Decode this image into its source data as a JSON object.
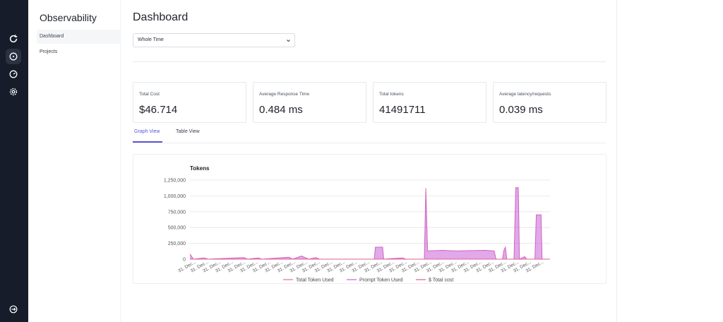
{
  "rail": {
    "icons": [
      "refresh-icon",
      "crosshair-icon",
      "gauge-icon",
      "settings-icon"
    ],
    "bottom_icon": "logout-icon"
  },
  "sidebar": {
    "brand": "Observability",
    "items": [
      {
        "label": "Dashboard",
        "active": true
      },
      {
        "label": "Projects",
        "active": false
      }
    ]
  },
  "main": {
    "title": "Dashboard",
    "range_select": {
      "value": "Whole Time"
    },
    "cards": [
      {
        "label": "Total Cost",
        "value": "$46.714"
      },
      {
        "label": "Average Response Time",
        "value": "0.484 ms"
      },
      {
        "label": "Total tokens",
        "value": "41491711"
      },
      {
        "label": "Average latency/requests",
        "value": "0.039 ms"
      }
    ],
    "tabs": [
      {
        "label": "Graph View",
        "active": true
      },
      {
        "label": "Table View",
        "active": false
      }
    ]
  },
  "colors": {
    "accent": "#5b55d6",
    "rail_bg": "#171c2b",
    "total_token": "#e0709b",
    "prompt_token": "#c860d8",
    "total_cost": "#e05f96"
  },
  "chart_data": {
    "type": "area",
    "title": "Tokens",
    "ylabel": "",
    "xlabel": "",
    "ylim": [
      0,
      1250000
    ],
    "yticks": [
      0,
      250000,
      500000,
      750000,
      1000000,
      1250000
    ],
    "ytick_labels": [
      "0",
      "250,000",
      "500,000",
      "750,000",
      "1,000,000",
      "1,250,000"
    ],
    "xtick_label": "31. Dec...",
    "xtick_count": 29,
    "legend": [
      "Total Token Used",
      "Prompt Token Used",
      "$ Total cost"
    ],
    "series": [
      {
        "name": "Total Token Used",
        "color": "#e0709b"
      },
      {
        "name": "Prompt Token Used",
        "color": "#c860d8"
      },
      {
        "name": "$ Total cost",
        "color": "#e05f96"
      }
    ],
    "points": [
      {
        "x": 0.0,
        "y": 80000
      },
      {
        "x": 0.01,
        "y": 0
      },
      {
        "x": 0.04,
        "y": 20000
      },
      {
        "x": 0.05,
        "y": 0
      },
      {
        "x": 0.15,
        "y": 25000
      },
      {
        "x": 0.16,
        "y": 0
      },
      {
        "x": 0.19,
        "y": 20000
      },
      {
        "x": 0.2,
        "y": 0
      },
      {
        "x": 0.275,
        "y": 30000
      },
      {
        "x": 0.285,
        "y": 0
      },
      {
        "x": 0.31,
        "y": 50000
      },
      {
        "x": 0.32,
        "y": 25000
      },
      {
        "x": 0.33,
        "y": 0
      },
      {
        "x": 0.35,
        "y": 25000
      },
      {
        "x": 0.36,
        "y": 0
      },
      {
        "x": 0.512,
        "y": 0
      },
      {
        "x": 0.515,
        "y": 190000
      },
      {
        "x": 0.535,
        "y": 190000
      },
      {
        "x": 0.538,
        "y": 0
      },
      {
        "x": 0.59,
        "y": 20000
      },
      {
        "x": 0.6,
        "y": 0
      },
      {
        "x": 0.651,
        "y": 0
      },
      {
        "x": 0.655,
        "y": 1120000
      },
      {
        "x": 0.66,
        "y": 130000
      },
      {
        "x": 0.7,
        "y": 140000
      },
      {
        "x": 0.74,
        "y": 130000
      },
      {
        "x": 0.78,
        "y": 135000
      },
      {
        "x": 0.82,
        "y": 140000
      },
      {
        "x": 0.845,
        "y": 130000
      },
      {
        "x": 0.85,
        "y": 0
      },
      {
        "x": 0.868,
        "y": 0
      },
      {
        "x": 0.872,
        "y": 140000
      },
      {
        "x": 0.876,
        "y": 190000
      },
      {
        "x": 0.88,
        "y": 0
      },
      {
        "x": 0.9,
        "y": 0
      },
      {
        "x": 0.905,
        "y": 1130000
      },
      {
        "x": 0.912,
        "y": 1130000
      },
      {
        "x": 0.915,
        "y": 0
      },
      {
        "x": 0.93,
        "y": 40000
      },
      {
        "x": 0.935,
        "y": 0
      },
      {
        "x": 0.958,
        "y": 0
      },
      {
        "x": 0.962,
        "y": 700000
      },
      {
        "x": 0.975,
        "y": 700000
      },
      {
        "x": 0.978,
        "y": 0
      },
      {
        "x": 1.0,
        "y": 0
      }
    ]
  }
}
